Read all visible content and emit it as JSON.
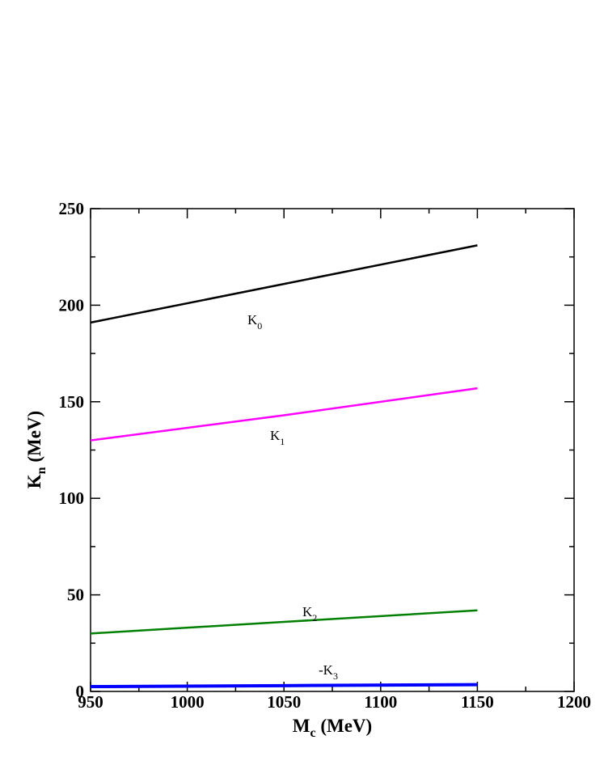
{
  "chart_data": {
    "type": "line",
    "xlabel": {
      "main": "M",
      "sub": "c",
      "rest": " (MeV)"
    },
    "ylabel": {
      "main": "K",
      "sub": "n",
      "rest": " (MeV)"
    },
    "x": [
      950,
      1050,
      1150
    ],
    "series": [
      {
        "name": "K",
        "subscript": "0",
        "color": "#000000",
        "values": [
          191,
          211,
          231
        ]
      },
      {
        "name": "K",
        "subscript": "1",
        "color": "#ff00ff",
        "values": [
          130,
          143,
          157
        ]
      },
      {
        "name": "K",
        "subscript": "2",
        "color": "#008000",
        "values": [
          30,
          36,
          42
        ]
      },
      {
        "name": "-K",
        "subscript": "3",
        "color": "#0000ff",
        "values": [
          2.5,
          3,
          3.5
        ]
      }
    ],
    "xlim": [
      950,
      1200
    ],
    "ylim": [
      0,
      250
    ],
    "xticks": [
      950,
      1000,
      1050,
      1100,
      1150,
      1200
    ],
    "yticks": [
      0,
      50,
      100,
      150,
      200,
      250
    ],
    "xminorticks": [
      975,
      1025,
      1075,
      1125,
      1175
    ],
    "yminorticks": [
      25,
      75,
      125,
      175,
      225
    ],
    "grid": false
  }
}
